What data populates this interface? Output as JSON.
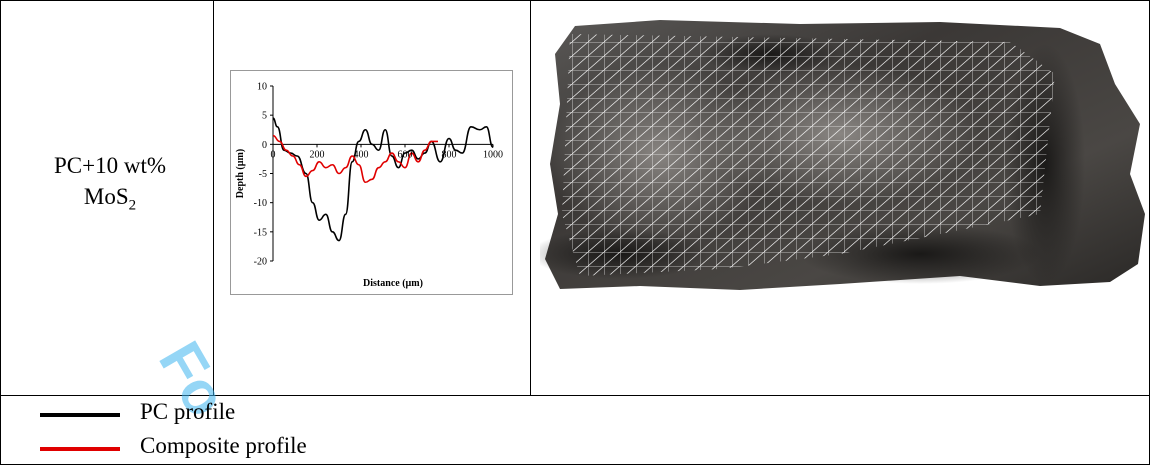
{
  "sample": {
    "label_main": "PC+10 wt%",
    "label_formula": "MoS",
    "label_sub": "2"
  },
  "chart_data": {
    "type": "line",
    "xlabel": "Distance (µm)",
    "ylabel": "Depth (µm)",
    "xlim": [
      0,
      1000
    ],
    "ylim": [
      -20,
      10
    ],
    "x_ticks": [
      0,
      200,
      400,
      600,
      800,
      1000
    ],
    "y_ticks": [
      10,
      5,
      0,
      -5,
      -10,
      -15,
      -20
    ],
    "series": [
      {
        "name": "PC profile",
        "color": "#000000",
        "x": [
          0,
          20,
          50,
          80,
          110,
          150,
          180,
          210,
          240,
          270,
          300,
          330,
          360,
          390,
          420,
          450,
          480,
          510,
          540,
          570,
          600,
          630,
          660,
          690,
          720,
          760,
          800,
          830,
          860,
          900,
          940,
          970,
          1000
        ],
        "y": [
          4.5,
          3,
          -1,
          -1.5,
          -2,
          -5,
          -10,
          -13,
          -12,
          -15,
          -16.5,
          -12,
          -3,
          0.5,
          2.5,
          0,
          -1,
          2.5,
          -2,
          -4,
          -1.5,
          -1,
          -2.5,
          -1.5,
          0.5,
          -3,
          1,
          -1,
          -1.5,
          3,
          2.5,
          3,
          -0.5
        ]
      },
      {
        "name": "Composite profile",
        "color": "#e00000",
        "x": [
          0,
          30,
          60,
          90,
          120,
          150,
          180,
          210,
          240,
          270,
          300,
          330,
          360,
          390,
          420,
          450,
          480,
          510,
          540,
          570,
          600,
          630,
          660,
          690,
          720,
          750
        ],
        "y": [
          1.5,
          0.5,
          -1,
          -2,
          -3.5,
          -5.5,
          -4.5,
          -3,
          -4,
          -3.5,
          -5,
          -4,
          -2,
          -3.5,
          -6.5,
          -6,
          -4,
          -3,
          -1.5,
          -3,
          -4,
          -1.5,
          -3,
          -1,
          0.5,
          0.5
        ]
      }
    ]
  },
  "legend": {
    "items": [
      {
        "label": "PC profile",
        "color": "#000000"
      },
      {
        "label": "Composite profile",
        "color": "#e00000"
      }
    ]
  },
  "watermark": {
    "text": "Fo"
  }
}
